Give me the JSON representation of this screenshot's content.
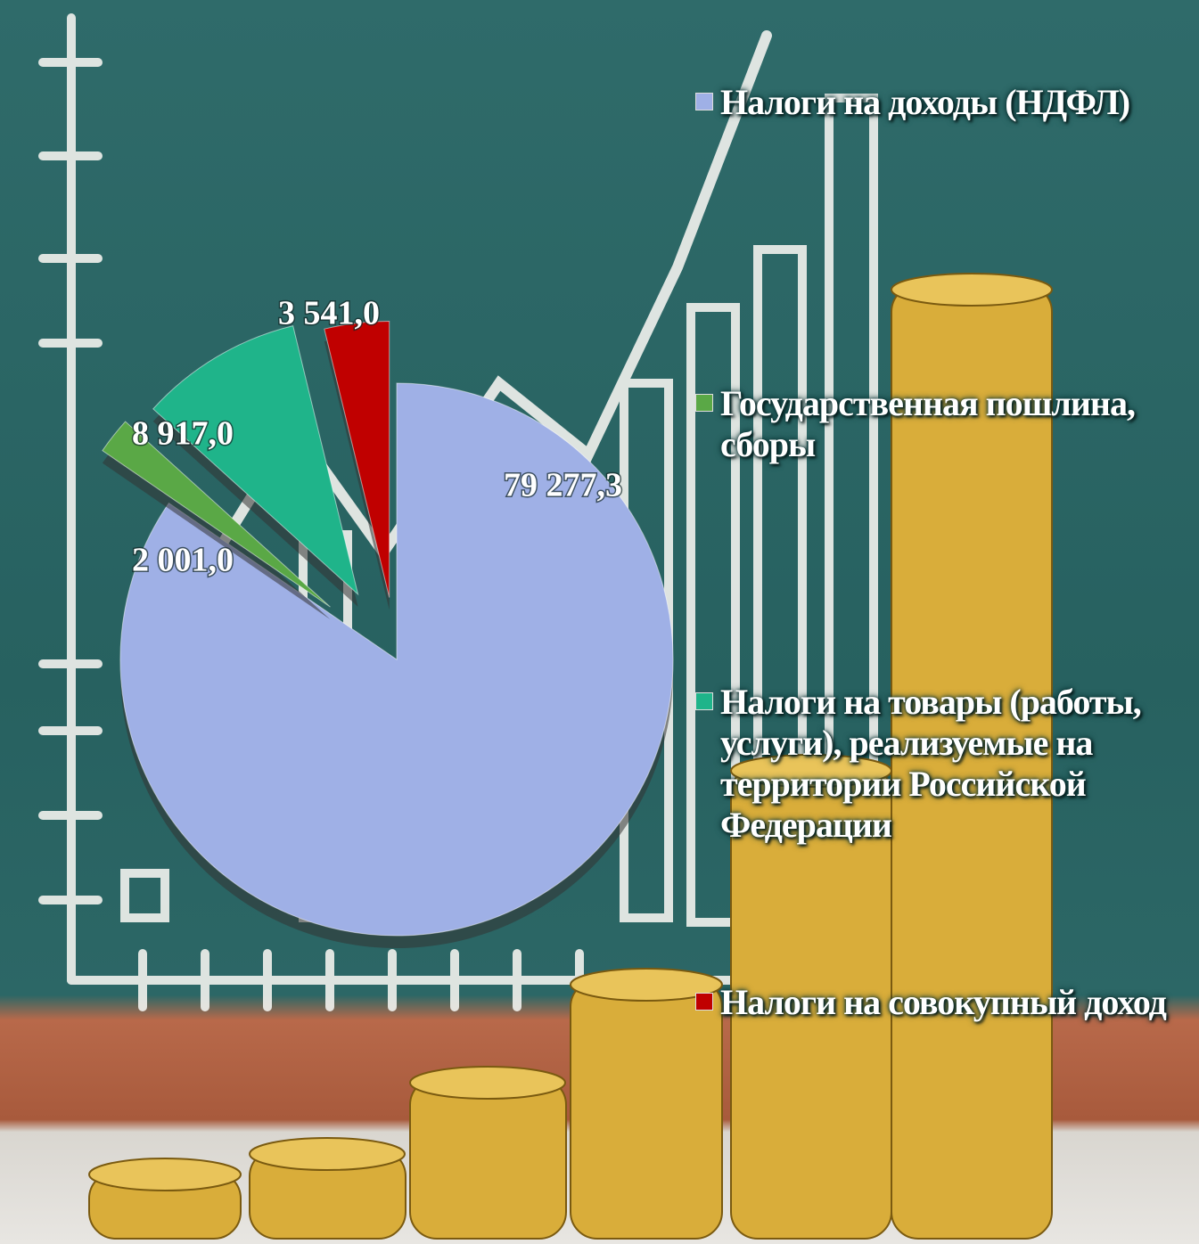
{
  "chart_data": {
    "type": "pie",
    "series": [
      {
        "name": "Налоги на доходы (НДФЛ)",
        "color": "#9fb0e6",
        "values": [
          79277.3
        ],
        "value_labels": [
          "79 277,3"
        ]
      },
      {
        "name": "Государственная пошлина, сборы",
        "color": "#5aa846",
        "values": [
          2001.0
        ],
        "value_labels": [
          "2 001,0"
        ]
      },
      {
        "name": "Налоги на товары (работы, услуги), реализуемые на территории Российской Федерации",
        "color": "#1fb48a",
        "values": [
          8917.0
        ],
        "value_labels": [
          "8 917,0"
        ]
      },
      {
        "name": "Налоги на совокупный доход",
        "color": "#c00000",
        "values": [
          3541.0
        ],
        "value_labels": [
          "3 541,0"
        ]
      }
    ]
  }
}
